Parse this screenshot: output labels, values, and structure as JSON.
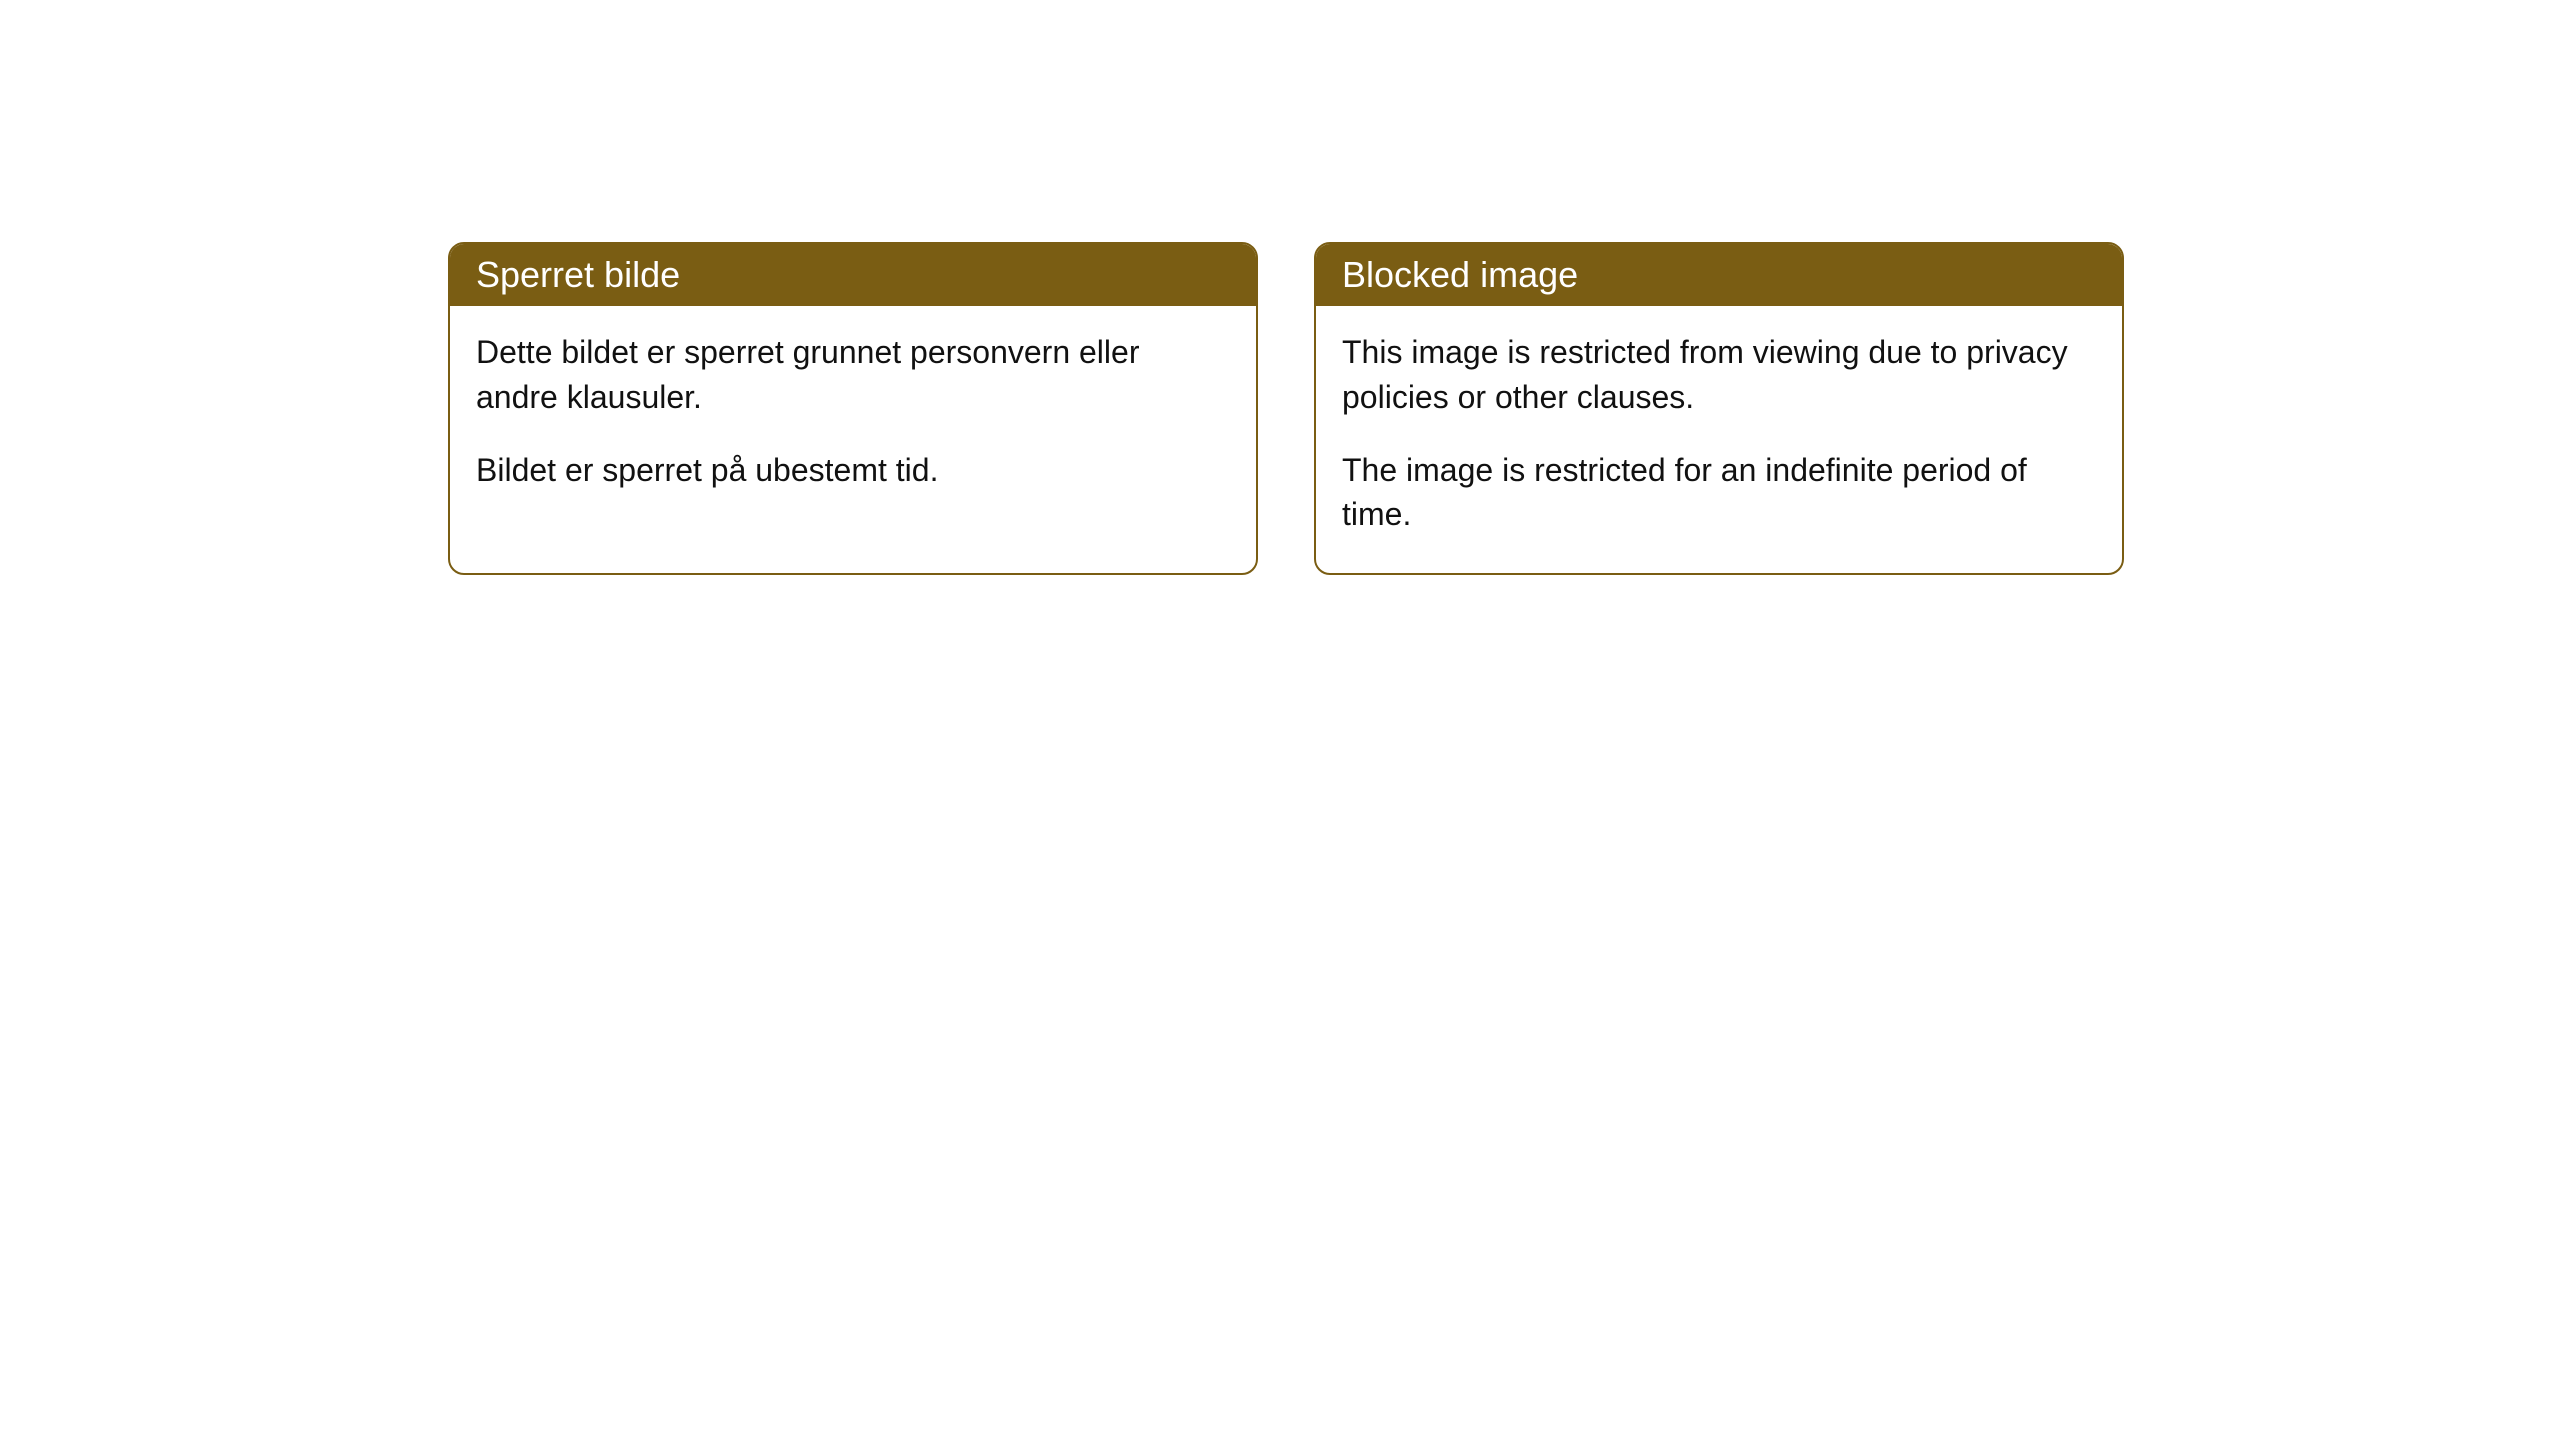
{
  "cards": [
    {
      "title": "Sperret bilde",
      "paragraph1": "Dette bildet er sperret grunnet personvern eller andre klausuler.",
      "paragraph2": "Bildet er sperret på ubestemt tid."
    },
    {
      "title": "Blocked image",
      "paragraph1": "This image is restricted from viewing due to privacy policies or other clauses.",
      "paragraph2": "The image is restricted for an indefinite period of time."
    }
  ],
  "colors": {
    "header_bg": "#7a5d13",
    "header_text": "#ffffff",
    "body_bg": "#ffffff",
    "body_text": "#111111",
    "border": "#7a5d13"
  }
}
